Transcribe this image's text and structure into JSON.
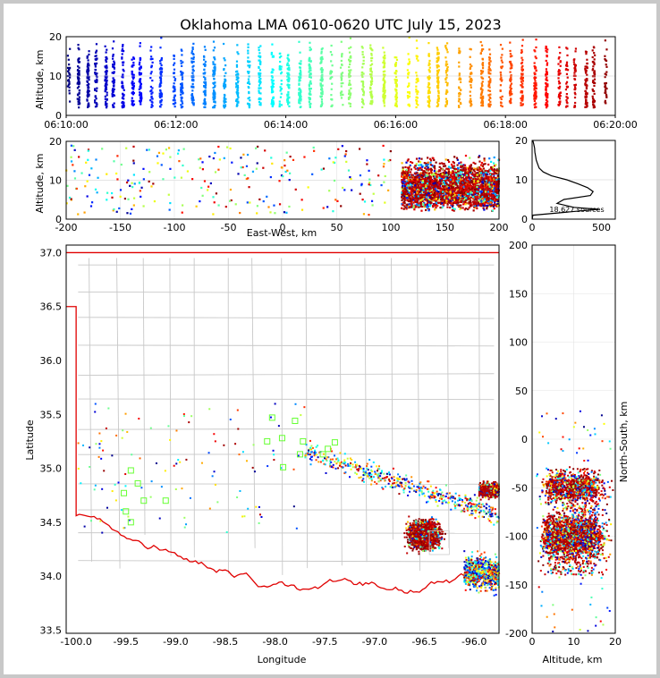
{
  "chart_data": [
    {
      "id": "time-height",
      "type": "scatter",
      "title": "Oklahoma LMA 0610-0620 UTC July 15, 2023",
      "ylabel": "Altitude, km",
      "xlabel": "",
      "x_ticks": [
        "06:10:00",
        "06:12:00",
        "06:14:00",
        "06:16:00",
        "06:18:00",
        "06:20:00"
      ],
      "x_range_min": [
        0,
        10
      ],
      "y_ticks": [
        "0",
        "10",
        "20"
      ],
      "ylim": [
        0,
        20
      ],
      "color_scale": "time (blue to red)"
    },
    {
      "id": "ew-height",
      "type": "scatter",
      "xlabel": "East-West, km",
      "ylabel": "Altitude, km",
      "x_ticks": [
        "-200",
        "-150",
        "-100",
        "-50",
        "0",
        "50",
        "100",
        "150",
        "200"
      ],
      "xlim": [
        -200,
        200
      ],
      "y_ticks": [
        "0",
        "10",
        "20"
      ],
      "ylim": [
        0,
        20
      ]
    },
    {
      "id": "altitude-histogram",
      "type": "line",
      "annotation": "18,627 sources",
      "x_ticks": [
        "0",
        "500"
      ],
      "xlim": [
        0,
        600
      ],
      "y_ticks": [
        "0",
        "10",
        "20"
      ],
      "ylim": [
        0,
        20
      ],
      "profile": [
        [
          0.5,
          0
        ],
        [
          5,
          1
        ],
        [
          320,
          2
        ],
        [
          480,
          2.5
        ],
        [
          300,
          3
        ],
        [
          180,
          4
        ],
        [
          230,
          5
        ],
        [
          420,
          6
        ],
        [
          440,
          7
        ],
        [
          400,
          8
        ],
        [
          330,
          9
        ],
        [
          250,
          10
        ],
        [
          140,
          11
        ],
        [
          80,
          12
        ],
        [
          50,
          13
        ],
        [
          40,
          14
        ],
        [
          30,
          15
        ],
        [
          25,
          16
        ],
        [
          20,
          17
        ],
        [
          18,
          18
        ],
        [
          12,
          19
        ],
        [
          5,
          20
        ]
      ]
    },
    {
      "id": "plan-view",
      "type": "scatter",
      "xlabel": "Longitude",
      "ylabel": "Latitude",
      "x_ticks": [
        "-100.0",
        "-99.5",
        "-99.0",
        "-98.5",
        "-98.0",
        "-97.5",
        "-97.0",
        "-96.5",
        "-96.0"
      ],
      "xlim": [
        -100.1,
        -95.75
      ],
      "y_ticks": [
        "33.5",
        "34.0",
        "34.5",
        "35.0",
        "35.5",
        "36.0",
        "36.5",
        "37.0"
      ],
      "ylim": [
        33.47,
        37.07
      ],
      "stations": [
        [
          -99.45,
          34.98
        ],
        [
          -99.52,
          34.77
        ],
        [
          -99.38,
          34.86
        ],
        [
          -99.5,
          34.6
        ],
        [
          -99.45,
          34.5
        ],
        [
          -99.32,
          34.7
        ],
        [
          -99.1,
          34.7
        ],
        [
          -98.03,
          35.47
        ],
        [
          -97.8,
          35.44
        ],
        [
          -98.08,
          35.25
        ],
        [
          -97.93,
          35.28
        ],
        [
          -97.72,
          35.25
        ],
        [
          -97.92,
          35.01
        ],
        [
          -97.75,
          35.13
        ],
        [
          -97.52,
          35.13
        ],
        [
          -97.47,
          35.18
        ],
        [
          -97.4,
          35.24
        ]
      ]
    },
    {
      "id": "ns-altitude",
      "type": "scatter",
      "xlabel": "Altitude, km",
      "ylabel": "North-South, km",
      "x_ticks": [
        "0",
        "10",
        "20"
      ],
      "xlim": [
        0,
        20
      ],
      "y_ticks": [
        "200",
        "150",
        "100",
        "50",
        "0",
        "-50",
        "-100",
        "-150",
        "-200"
      ],
      "ylim": [
        -200,
        200
      ]
    }
  ]
}
